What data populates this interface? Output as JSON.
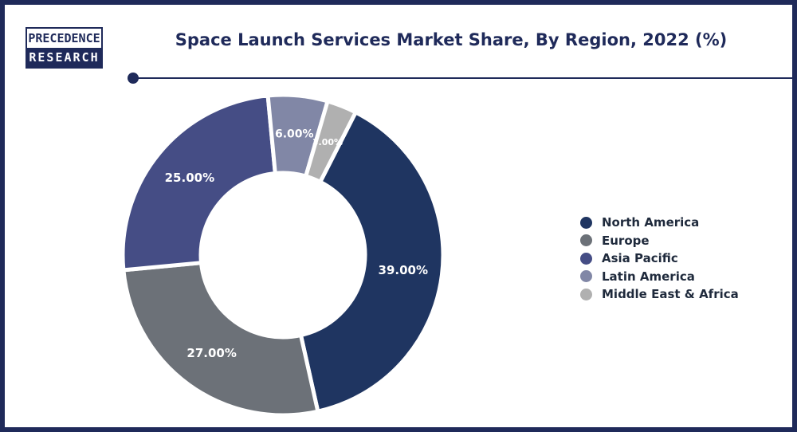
{
  "logo": {
    "line1": "PRECEDENCE",
    "line2": "RESEARCH"
  },
  "chart_data": {
    "type": "pie",
    "variant": "donut",
    "title": "Space Launch Services Market Share, By Region, 2022 (%)",
    "categories": [
      "North America",
      "Europe",
      "Asia Pacific",
      "Latin America",
      "Middle East & Africa"
    ],
    "values": [
      39.0,
      27.0,
      25.0,
      6.0,
      3.0
    ],
    "labels": [
      "39.00%",
      "27.00%",
      "25.00%",
      "6.00%",
      "3.00%"
    ],
    "colors": [
      "#1f3561",
      "#6c7178",
      "#454d85",
      "#8187a6",
      "#b0b0b0"
    ],
    "legend_position": "right"
  }
}
